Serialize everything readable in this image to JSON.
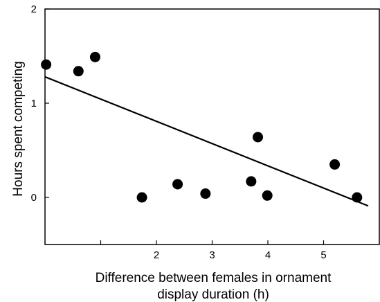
{
  "chart_data": {
    "type": "scatter",
    "xlabel_lines": [
      "Difference between females in ornament",
      "display duration (h)"
    ],
    "ylabel": "Hours spent competing",
    "xlim": [
      0,
      6
    ],
    "ylim": [
      -0.5,
      2
    ],
    "x_ticks": [
      {
        "value": 1,
        "label": ""
      },
      {
        "value": 2,
        "label": "2"
      },
      {
        "value": 3,
        "label": "3"
      },
      {
        "value": 4,
        "label": "4"
      },
      {
        "value": 5,
        "label": "5"
      }
    ],
    "y_ticks": [
      {
        "value": 0,
        "label": "0"
      },
      {
        "value": 1,
        "label": "1"
      },
      {
        "value": 2,
        "label": "2"
      }
    ],
    "points": [
      {
        "x": 0.02,
        "y": 1.41
      },
      {
        "x": 0.6,
        "y": 1.34
      },
      {
        "x": 0.9,
        "y": 1.49
      },
      {
        "x": 1.74,
        "y": 0.0
      },
      {
        "x": 2.38,
        "y": 0.14
      },
      {
        "x": 2.88,
        "y": 0.04
      },
      {
        "x": 3.7,
        "y": 0.17
      },
      {
        "x": 3.82,
        "y": 0.64
      },
      {
        "x": 3.99,
        "y": 0.02
      },
      {
        "x": 5.2,
        "y": 0.35
      },
      {
        "x": 5.6,
        "y": 0.0
      }
    ],
    "trendline": {
      "x": [
        0,
        5.8
      ],
      "y": [
        1.28,
        -0.09
      ]
    },
    "grid": false,
    "legend": "none"
  }
}
